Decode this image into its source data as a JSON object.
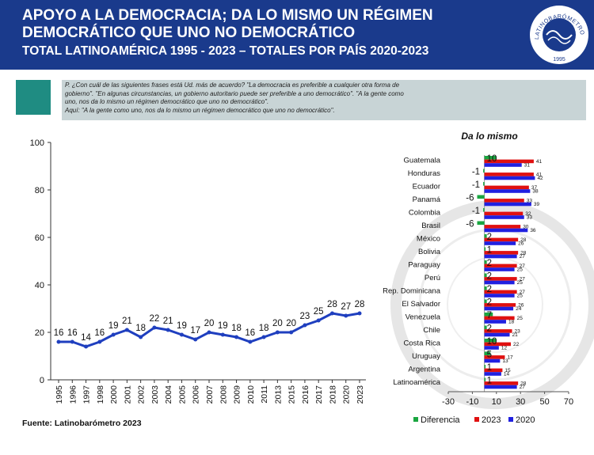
{
  "header": {
    "title_line1": "APOYO A LA DEMOCRACIA; DA LO MISMO UN RÉGIMEN",
    "title_line2": "DEMOCRÁTICO QUE UNO NO DEMOCRÁTICO",
    "subtitle": "TOTAL LATINOAMÉRICA 1995  - 2023 – TOTALES POR PAÍS 2020-2023",
    "logo_text": "LATINOBARÓMETRO",
    "logo_year": "1995"
  },
  "question": {
    "line1": "P. ¿Con cuál de las siguientes frases está Ud. más de acuerdo? \"La democracia es preferible a cualquier otra forma de",
    "line2": "gobierno\". \"En algunas circunstancias, un gobierno autoritario puede ser preferible a uno democrático\". \"A la gente como",
    "line3": "uno, nos da lo mismo un régimen democrático que uno no democrático\".",
    "line4": "Aquí: \"A la gente como uno, nos da lo mismo un régimen democrático que uno no democrático\"."
  },
  "source": "Fuente: Latinobarómetro 2023",
  "colors": {
    "header_bg": "#1a3a8c",
    "line": "#1f3fbf",
    "diferencia": "#1aa640",
    "y2023": "#e01010",
    "y2020": "#2020e0"
  },
  "chart_data": [
    {
      "type": "line",
      "title": "",
      "x": [
        "1995",
        "1996",
        "1997",
        "1998",
        "2000",
        "2001",
        "2002",
        "2003",
        "2004",
        "2005",
        "2006",
        "2007",
        "2008",
        "2009",
        "2010",
        "2011",
        "2013",
        "2015",
        "2016",
        "2017",
        "2018",
        "2020",
        "2023"
      ],
      "values": [
        16,
        16,
        14,
        16,
        19,
        21,
        18,
        22,
        21,
        19,
        17,
        20,
        19,
        18,
        16,
        18,
        20,
        20,
        23,
        25,
        28,
        27,
        28
      ],
      "ylim": [
        0,
        100
      ],
      "yticks": [
        "0",
        "20",
        "40",
        "60",
        "80",
        "100"
      ],
      "grid": false
    },
    {
      "type": "bar",
      "orientation": "horizontal",
      "title": "Da lo mismo",
      "categories": [
        "Guatemala",
        "Honduras",
        "Ecuador",
        "Panamá",
        "Colombia",
        "Brasil",
        "México",
        "Bolivia",
        "Paraguay",
        "Perú",
        "Rep. Dominicana",
        "El Salvador",
        "Venezuela",
        "Chile",
        "Costa Rica",
        "Uruguay",
        "Argentina",
        "Latinoamérica"
      ],
      "series": [
        {
          "name": "Diferencia",
          "values": [
            10,
            -1,
            -1,
            -6,
            -1,
            -6,
            2,
            1,
            2,
            2,
            2,
            2,
            7,
            2,
            10,
            5,
            1,
            1
          ]
        },
        {
          "name": "2023",
          "values": [
            41,
            41,
            37,
            33,
            32,
            30,
            28,
            28,
            27,
            27,
            27,
            26,
            25,
            23,
            22,
            17,
            15,
            28
          ]
        },
        {
          "name": "2020",
          "values": [
            31,
            42,
            38,
            39,
            33,
            36,
            26,
            27,
            25,
            25,
            25,
            24,
            18,
            21,
            12,
            13,
            14,
            27
          ]
        }
      ],
      "xlim": [
        -30,
        70
      ],
      "xticks": [
        "-30",
        "-10",
        "10",
        "30",
        "50",
        "70"
      ],
      "legend": "bottom"
    }
  ]
}
